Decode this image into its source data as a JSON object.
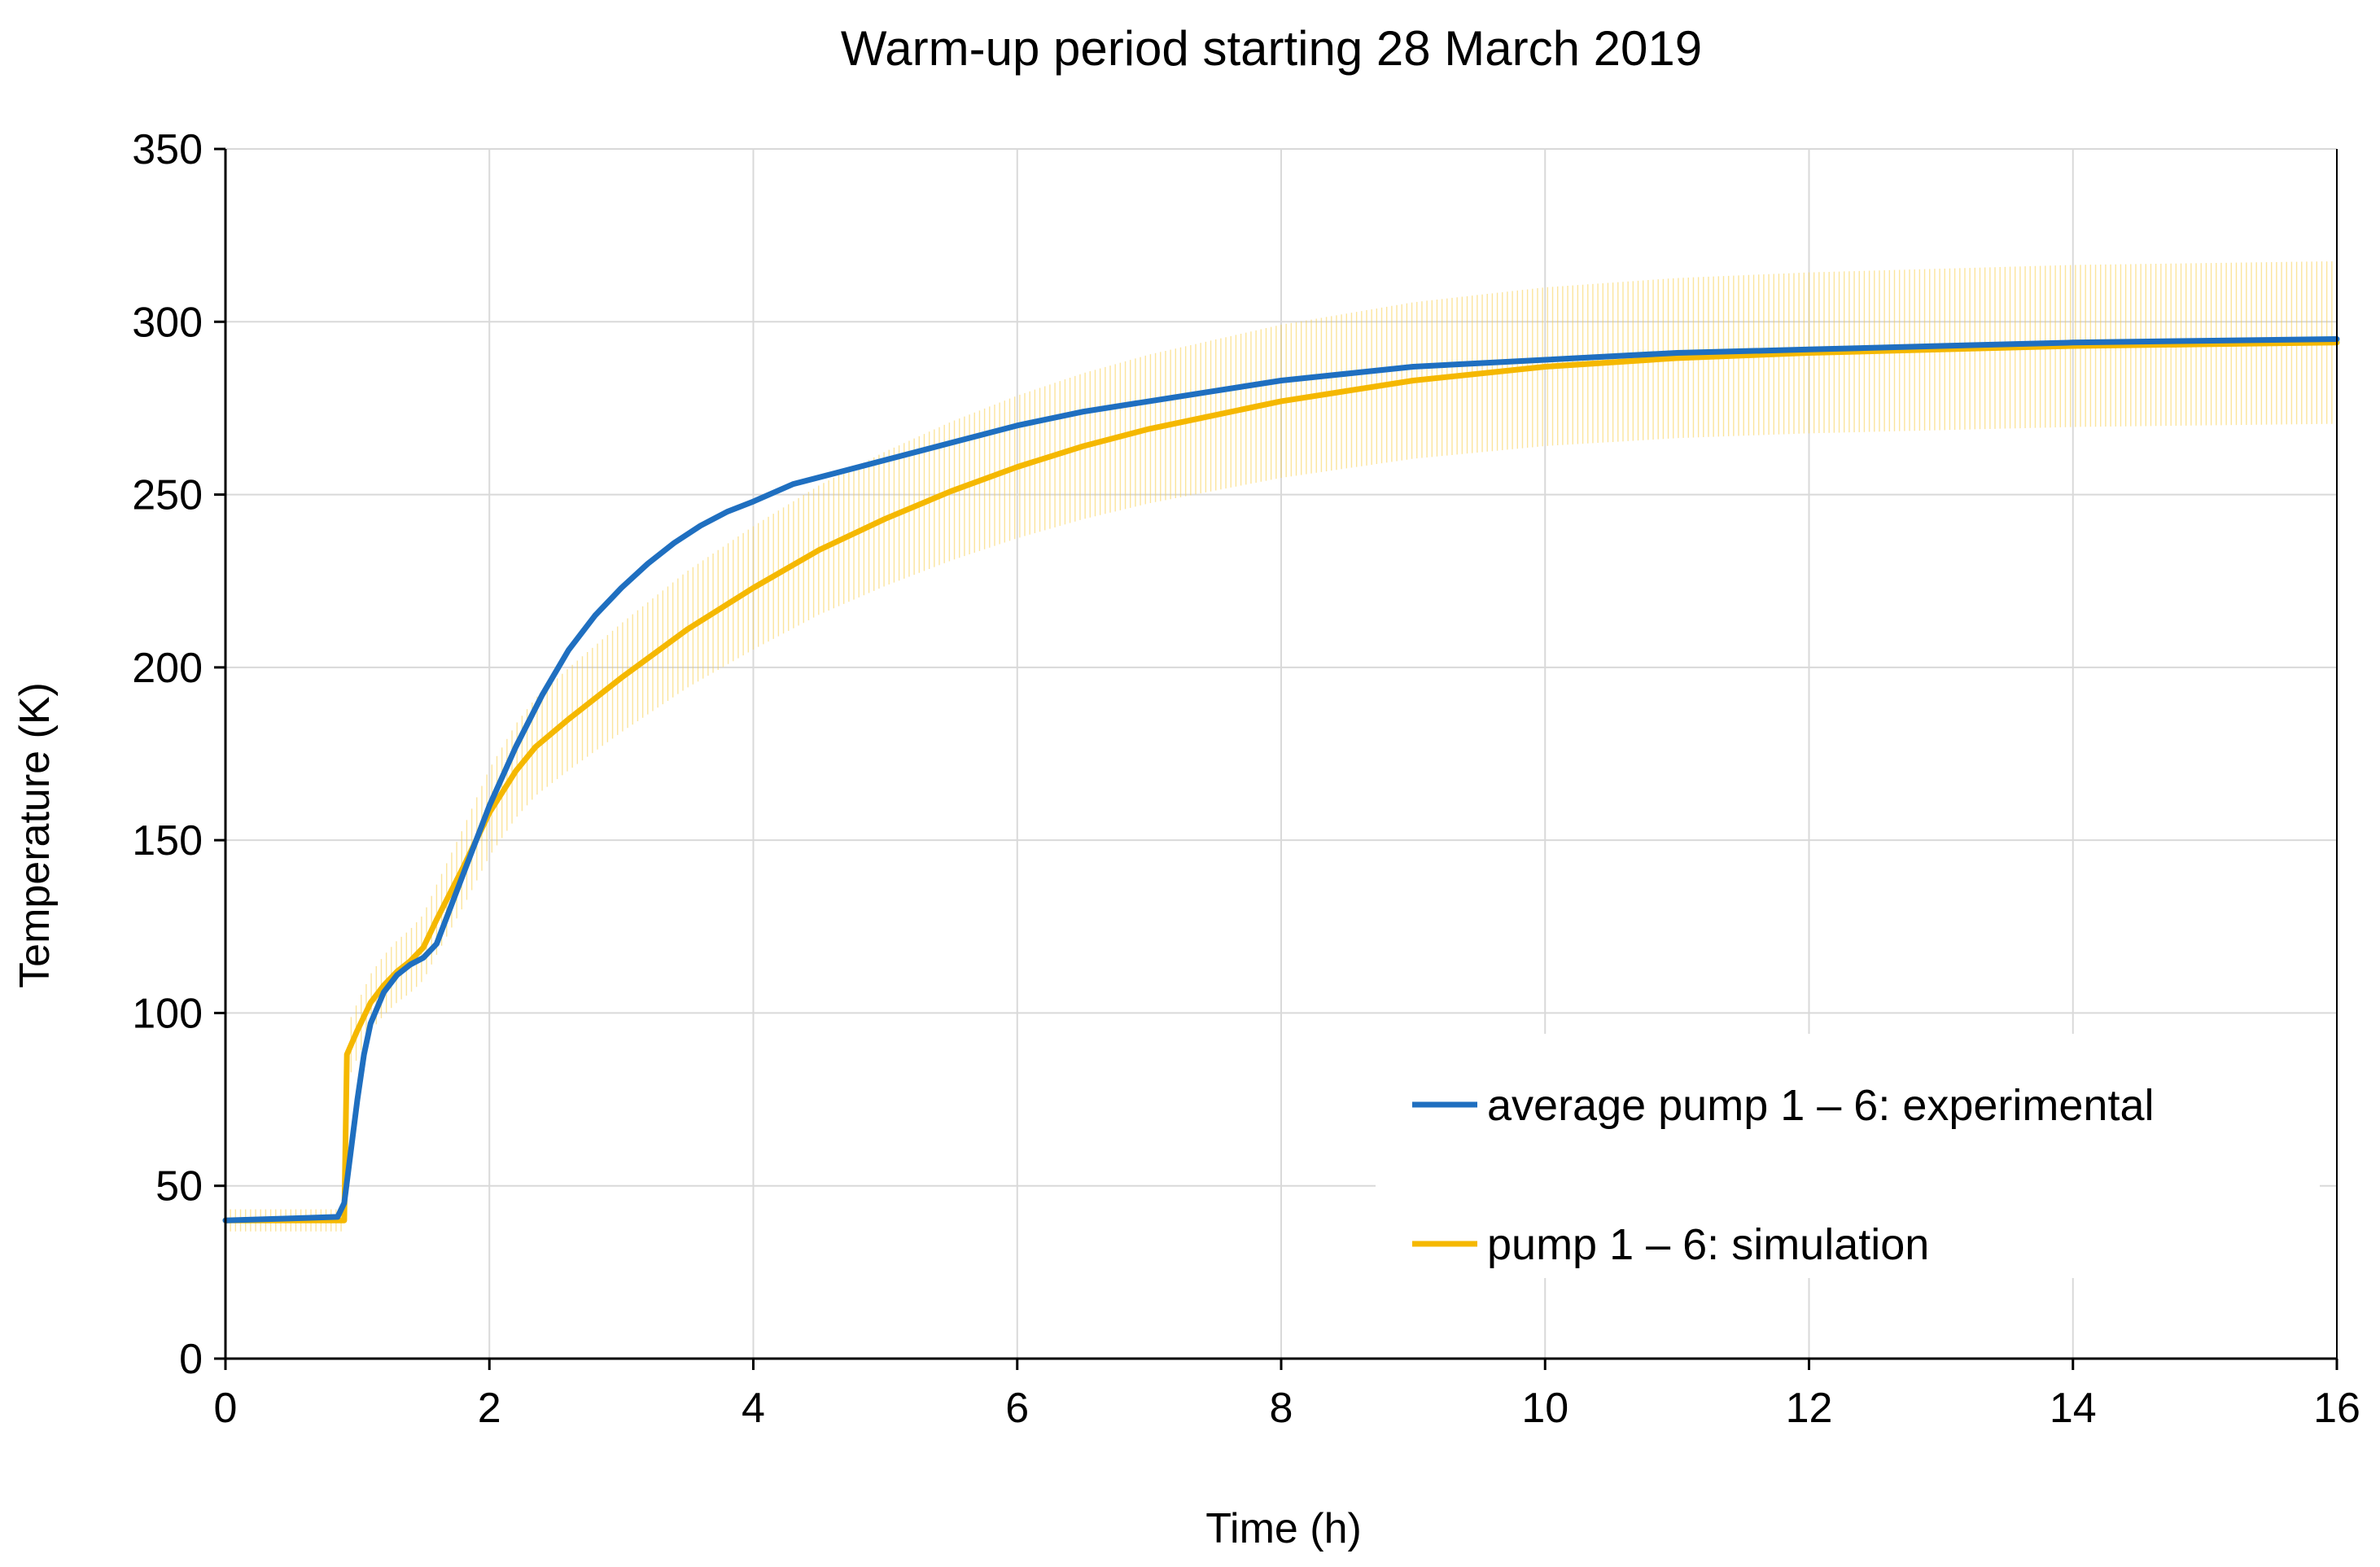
{
  "chart_data": {
    "type": "line",
    "title": "Warm-up period starting 28 March 2019",
    "xlabel": "Time (h)",
    "ylabel": "Temperature (K)",
    "xlim": [
      0,
      16
    ],
    "ylim": [
      0,
      350
    ],
    "xticks": [
      0,
      2,
      4,
      6,
      8,
      10,
      12,
      14,
      16
    ],
    "yticks": [
      0,
      50,
      100,
      150,
      200,
      250,
      300,
      350
    ],
    "grid": true,
    "legend_position": "bottom-right",
    "colors": {
      "experimental": "#1f6fc0",
      "simulation": "#f5b800",
      "band": "#f8cd4a",
      "grid": "#d9d9d9",
      "axis": "#000000"
    },
    "series": [
      {
        "name": "average pump 1 – 6: experimental",
        "x": [
          0,
          0.45,
          0.85,
          0.9,
          0.95,
          1.0,
          1.05,
          1.1,
          1.2,
          1.3,
          1.4,
          1.5,
          1.6,
          1.8,
          2.0,
          2.2,
          2.4,
          2.6,
          2.8,
          3.0,
          3.2,
          3.4,
          3.6,
          3.8,
          4.0,
          4.3,
          4.6,
          5.0,
          5.5,
          6.0,
          6.5,
          7.0,
          7.5,
          8.0,
          8.5,
          9.0,
          10.0,
          11.0,
          12.0,
          13.0,
          14.0,
          15.0,
          16.0
        ],
        "values": [
          40,
          40.5,
          41,
          45,
          60,
          75,
          88,
          97,
          106,
          111,
          114,
          116,
          120,
          140,
          160,
          177,
          192,
          205,
          215,
          223,
          230,
          236,
          241,
          245,
          248,
          253,
          256,
          260,
          265,
          270,
          274,
          277,
          280,
          283,
          285,
          287,
          289,
          291,
          292,
          293,
          294,
          294.5,
          295
        ]
      },
      {
        "name": "pump 1 – 6: simulation",
        "x": [
          0,
          0.85,
          0.9,
          0.92,
          1.0,
          1.1,
          1.2,
          1.3,
          1.4,
          1.5,
          1.6,
          1.8,
          2.0,
          2.2,
          2.35,
          2.6,
          3.0,
          3.5,
          4.0,
          4.5,
          5.0,
          5.5,
          6.0,
          6.5,
          7.0,
          7.5,
          8.0,
          8.5,
          9.0,
          10.0,
          11.0,
          12.0,
          13.0,
          14.0,
          15.0,
          16.0
        ],
        "values": [
          40,
          40,
          40,
          88,
          95,
          103,
          108,
          112,
          115,
          119,
          127,
          142,
          158,
          170,
          177,
          185,
          197,
          211,
          223,
          234,
          243,
          251,
          258,
          264,
          269,
          273,
          277,
          280,
          283,
          287,
          289.5,
          291,
          292,
          293,
          293.5,
          294
        ],
        "error_band_abs": 8,
        "error_band_rel": 0.08
      }
    ]
  }
}
